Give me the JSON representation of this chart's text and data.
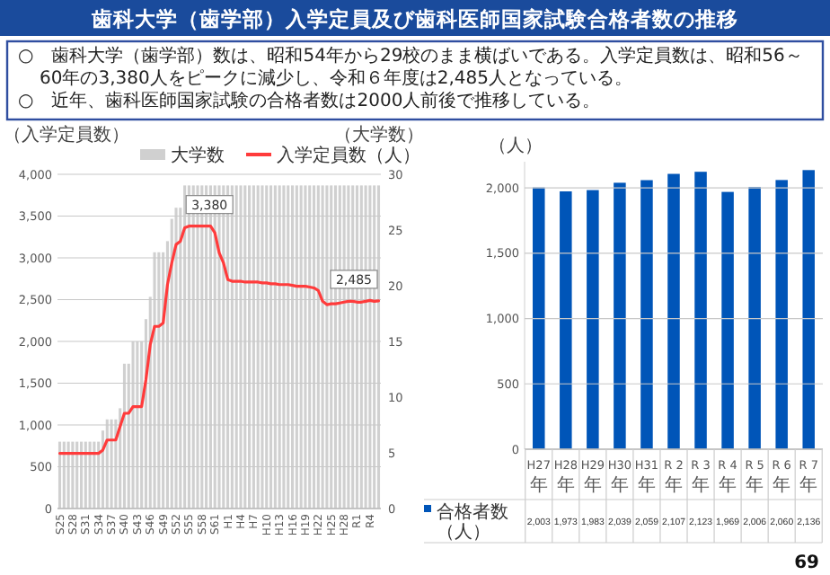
{
  "chart_data": [
    {
      "type": "bar",
      "title": "歯科大学（歯学部）入学定員及び歯科医師国家試験合格者数の推移",
      "annotations": [
        "○　歯科大学（歯学部）数は、昭和54年から29校のまま横ばいである。入学定員数は、昭和56～60年の3,380人をピークに減少し、令和６年度は2,485人となっている。",
        "○　近年、歯科医師国家試験の合格者数は2000人前後で推移している。"
      ],
      "ylabel": "（入学定員数）",
      "y2label": "（大学数）",
      "categories": [
        "S25",
        null,
        null,
        "S28",
        null,
        null,
        "S31",
        null,
        null,
        "S34",
        null,
        null,
        "S37",
        null,
        null,
        "S40",
        null,
        null,
        "S43",
        null,
        null,
        "S46",
        null,
        null,
        "S49",
        null,
        null,
        "S52",
        null,
        null,
        "S55",
        null,
        null,
        "S58",
        null,
        null,
        "S61",
        null,
        null,
        "H1",
        null,
        null,
        "H4",
        null,
        null,
        "H7",
        null,
        null,
        "H10",
        null,
        null,
        "H13",
        null,
        null,
        "H16",
        null,
        null,
        "H19",
        null,
        null,
        "H22",
        null,
        null,
        "H25",
        null,
        null,
        "H28",
        null,
        null,
        "R1",
        null,
        null,
        "R4",
        null,
        null
      ],
      "series": [
        {
          "name": "大学数",
          "type": "bar",
          "axis": "y2",
          "color": "#d0d0d0",
          "values": [
            6,
            6,
            6,
            6,
            6,
            6,
            6,
            6,
            6,
            6,
            7,
            8,
            8,
            8,
            9,
            13,
            13,
            15,
            15,
            15,
            17,
            19,
            23,
            23,
            23,
            24,
            26,
            27,
            27,
            29,
            29,
            29,
            29,
            29,
            29,
            29,
            29,
            29,
            29,
            29,
            29,
            29,
            29,
            29,
            29,
            29,
            29,
            29,
            29,
            29,
            29,
            29,
            29,
            29,
            29,
            29,
            29,
            29,
            29,
            29,
            29,
            29,
            29,
            29,
            29,
            29,
            29,
            29,
            29,
            29,
            29,
            29,
            29,
            29,
            29
          ]
        },
        {
          "name": "入学定員数（人）",
          "type": "line",
          "color": "#ff3b3b",
          "values": [
            660,
            660,
            660,
            660,
            660,
            660,
            660,
            660,
            660,
            660,
            700,
            820,
            820,
            820,
            980,
            1140,
            1140,
            1220,
            1220,
            1220,
            1540,
            1960,
            2180,
            2180,
            2220,
            2680,
            2940,
            3160,
            3200,
            3360,
            3380,
            3380,
            3380,
            3380,
            3380,
            3380,
            3300,
            3060,
            2940,
            2740,
            2720,
            2720,
            2720,
            2710,
            2710,
            2710,
            2710,
            2700,
            2700,
            2690,
            2690,
            2680,
            2680,
            2680,
            2670,
            2660,
            2660,
            2660,
            2650,
            2640,
            2610,
            2480,
            2440,
            2450,
            2450,
            2460,
            2470,
            2480,
            2480,
            2470,
            2470,
            2480,
            2490,
            2480,
            2485
          ],
          "value_labels": [
            null,
            null,
            null,
            null,
            null,
            null,
            null,
            null,
            null,
            null,
            null,
            null,
            null,
            null,
            null,
            null,
            null,
            null,
            null,
            null,
            null,
            null,
            null,
            null,
            null,
            null,
            null,
            null,
            null,
            null,
            null,
            "3,380",
            null,
            null,
            null,
            null,
            null,
            null,
            null,
            null,
            null,
            null,
            null,
            null,
            null,
            null,
            null,
            null,
            null,
            null,
            null,
            null,
            null,
            null,
            null,
            null,
            null,
            null,
            null,
            null,
            null,
            null,
            null,
            null,
            null,
            null,
            null,
            null,
            null,
            null,
            null,
            null,
            null,
            null,
            "2,485"
          ]
        }
      ],
      "ylim": [
        0,
        4000
      ],
      "yticks": [
        {
          "value": 0,
          "label": "0"
        },
        {
          "value": 500,
          "label": "500"
        },
        {
          "value": 1000,
          "label": "1,000"
        },
        {
          "value": 1500,
          "label": "1,500"
        },
        {
          "value": 2000,
          "label": "2,000"
        },
        {
          "value": 2500,
          "label": "2,500"
        },
        {
          "value": 3000,
          "label": "3,000"
        },
        {
          "value": 3500,
          "label": "3,500"
        },
        {
          "value": 4000,
          "label": "4,000"
        }
      ],
      "y2lim": [
        0,
        30
      ],
      "y2ticks": [
        0,
        5,
        10,
        15,
        20,
        25,
        30
      ],
      "grid": "y",
      "legend": "top"
    },
    {
      "type": "bar",
      "ylabel": "（人）",
      "categories": [
        "H27\n年",
        "H28\n年",
        "H29\n年",
        "H30\n年",
        "H31\n年",
        "R 2\n年",
        "R 3\n年",
        "R 4\n年",
        "R 5\n年",
        "R 6\n年",
        "R 7\n年"
      ],
      "series": [
        {
          "name": "合格者数（人）",
          "color": "#0055b8",
          "values": [
            2003,
            1973,
            1983,
            2039,
            2059,
            2107,
            2123,
            1969,
            2006,
            2060,
            2136
          ],
          "value_labels": [
            "2,003",
            "1,973",
            "1,983",
            "2,039",
            "2,059",
            "2,107",
            "2,123",
            "1,969",
            "2,006",
            "2,060",
            "2,136"
          ]
        }
      ],
      "ylim": [
        0,
        2200
      ],
      "yticks": [
        {
          "value": 0,
          "label": "0"
        },
        {
          "value": 500,
          "label": "500"
        },
        {
          "value": 1000,
          "label": "1,000"
        },
        {
          "value": 1500,
          "label": "1,500"
        },
        {
          "value": 2000,
          "label": "2,000"
        }
      ],
      "grid": "y",
      "legend": "bottom",
      "annotations": [
        "69"
      ]
    }
  ]
}
